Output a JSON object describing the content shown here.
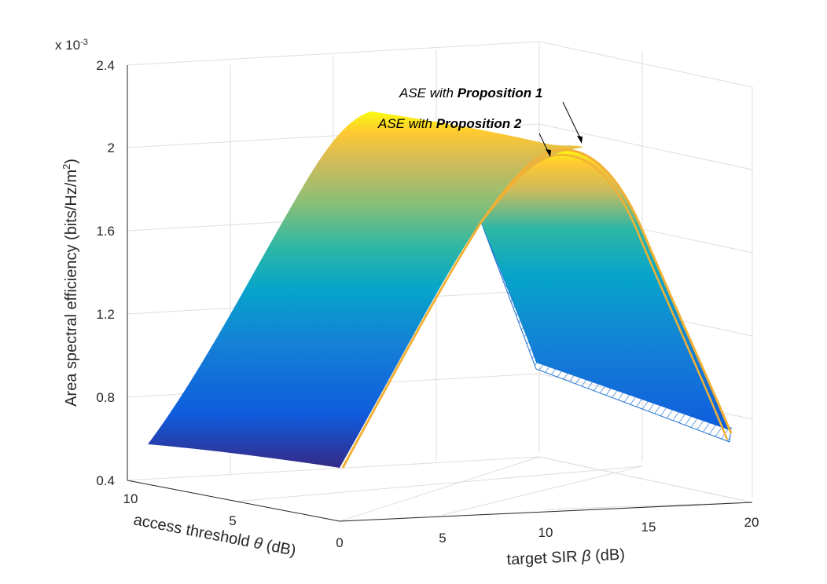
{
  "chart_data": {
    "type": "surface3d",
    "exponent_label": "x 10",
    "exponent_sup": "-3",
    "zlabel": "Area spectral efficiency (bits/Hz/m",
    "zlabel_sup": "2",
    "zlabel_end": ")",
    "xlabel_pre": "target SIR ",
    "xlabel_sym": "β",
    "xlabel_post": " (dB)",
    "ylabel_pre": "access threshold ",
    "ylabel_sym": "θ",
    "ylabel_post": " (dB)",
    "xlim": [
      0,
      20
    ],
    "ylim": [
      0,
      11
    ],
    "zlim": [
      0.4,
      2.4
    ],
    "x_ticks": [
      "0",
      "5",
      "10",
      "15",
      "20"
    ],
    "y_ticks": [
      "0",
      "5",
      "10"
    ],
    "z_ticks": [
      "0.4",
      "0.8",
      "1.2",
      "1.6",
      "2",
      "2.4"
    ],
    "z_scale": 0.001,
    "x": [
      0,
      10,
      20
    ],
    "series": [
      {
        "values_at_theta_0": [
          0.58,
          2.0,
          0.61
        ]
      },
      {
        "values_at_theta_11": [
          0.44,
          1.96,
          0.43
        ]
      }
    ],
    "annotations": [
      {
        "prefix": "ASE with ",
        "bold": "Proposition 1"
      },
      {
        "prefix": "ASE with ",
        "bold": "Proposition 2"
      }
    ],
    "grid": true,
    "colormap": "parula"
  }
}
